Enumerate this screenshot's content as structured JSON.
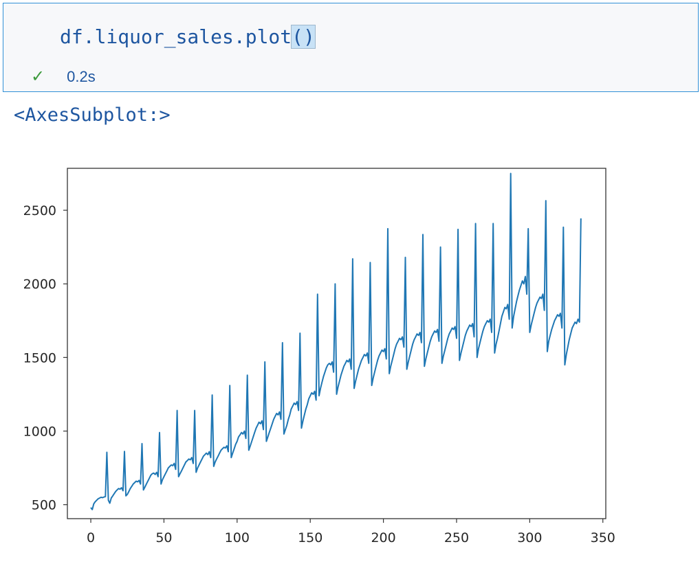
{
  "cell": {
    "code_prefix": "df.liquor_sales.plot",
    "code_parens": "()",
    "status_icon": "check-icon",
    "exec_time": "0.2s"
  },
  "output": {
    "text": "<AxesSubplot:>"
  },
  "chart_data": {
    "type": "line",
    "xlim": [
      -16,
      352
    ],
    "ylim": [
      405,
      2785
    ],
    "xticks": [
      0,
      50,
      100,
      150,
      200,
      250,
      300,
      350
    ],
    "yticks": [
      500,
      1000,
      1500,
      2000,
      2500
    ],
    "grid": false,
    "color": "#1f77b4",
    "series": [
      {
        "values": [
          480,
          467,
          505,
          520,
          530,
          540,
          545,
          550,
          548,
          552,
          555,
          856,
          530,
          510,
          545,
          560,
          575,
          590,
          600,
          610,
          605,
          615,
          595,
          862,
          560,
          570,
          590,
          610,
          625,
          640,
          650,
          660,
          655,
          665,
          640,
          915,
          600,
          620,
          640,
          660,
          680,
          700,
          710,
          715,
          705,
          720,
          690,
          990,
          640,
          670,
          690,
          710,
          730,
          750,
          760,
          770,
          765,
          780,
          740,
          1140,
          690,
          710,
          730,
          750,
          770,
          790,
          800,
          810,
          805,
          820,
          780,
          1140,
          720,
          750,
          770,
          790,
          810,
          830,
          840,
          850,
          840,
          860,
          820,
          1245,
          760,
          790,
          810,
          830,
          850,
          870,
          880,
          890,
          885,
          900,
          860,
          1310,
          820,
          850,
          880,
          910,
          930,
          960,
          975,
          990,
          980,
          1000,
          950,
          1380,
          870,
          900,
          930,
          960,
          990,
          1020,
          1040,
          1060,
          1050,
          1070,
          1010,
          1470,
          930,
          960,
          990,
          1020,
          1050,
          1080,
          1100,
          1120,
          1110,
          1130,
          1080,
          1600,
          980,
          1010,
          1040,
          1080,
          1110,
          1150,
          1170,
          1190,
          1180,
          1200,
          1140,
          1665,
          1020,
          1070,
          1110,
          1150,
          1180,
          1220,
          1240,
          1260,
          1250,
          1270,
          1210,
          1930,
          1240,
          1290,
          1330,
          1370,
          1400,
          1430,
          1450,
          1460,
          1450,
          1470,
          1400,
          2000,
          1250,
          1300,
          1340,
          1380,
          1410,
          1440,
          1460,
          1480,
          1470,
          1490,
          1420,
          2170,
          1290,
          1340,
          1380,
          1420,
          1450,
          1480,
          1500,
          1520,
          1510,
          1530,
          1460,
          2145,
          1310,
          1360,
          1400,
          1440,
          1480,
          1510,
          1530,
          1550,
          1540,
          1560,
          1490,
          2375,
          1390,
          1440,
          1480,
          1520,
          1560,
          1590,
          1610,
          1630,
          1620,
          1640,
          1570,
          2180,
          1420,
          1470,
          1510,
          1550,
          1590,
          1620,
          1640,
          1660,
          1650,
          1670,
          1600,
          2335,
          1440,
          1490,
          1530,
          1570,
          1610,
          1640,
          1660,
          1680,
          1670,
          1690,
          1610,
          2250,
          1460,
          1510,
          1550,
          1590,
          1630,
          1660,
          1680,
          1700,
          1690,
          1710,
          1630,
          2370,
          1480,
          1530,
          1570,
          1610,
          1650,
          1680,
          1700,
          1720,
          1710,
          1730,
          1640,
          2410,
          1500,
          1560,
          1600,
          1640,
          1680,
          1710,
          1730,
          1750,
          1740,
          1760,
          1670,
          2410,
          1530,
          1590,
          1630,
          1680,
          1730,
          1780,
          1810,
          1840,
          1830,
          1860,
          1760,
          2750,
          1700,
          1780,
          1830,
          1880,
          1920,
          1960,
          1990,
          2020,
          2000,
          2050,
          1930,
          2375,
          1670,
          1720,
          1760,
          1800,
          1840,
          1870,
          1890,
          1910,
          1900,
          1930,
          1820,
          2565,
          1540,
          1610,
          1650,
          1690,
          1720,
          1750,
          1770,
          1790,
          1780,
          1800,
          1700,
          2385,
          1450,
          1520,
          1570,
          1620,
          1660,
          1700,
          1720,
          1740,
          1730,
          1760,
          1740,
          2445
        ]
      }
    ]
  }
}
